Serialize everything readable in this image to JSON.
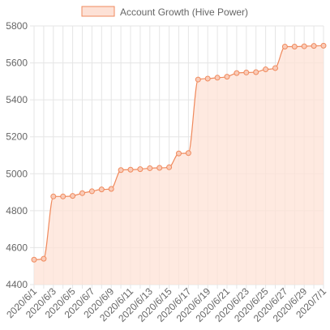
{
  "chart_data": {
    "type": "line",
    "title": "",
    "xlabel": "",
    "ylabel": "",
    "legend_position": "top",
    "grid": true,
    "ylim": [
      4400,
      5800
    ],
    "y_ticks": [
      4400,
      4600,
      4800,
      5000,
      5200,
      5400,
      5600,
      5800
    ],
    "x": [
      "2020/6/1",
      "2020/6/2",
      "2020/6/3",
      "2020/6/4",
      "2020/6/5",
      "2020/6/6",
      "2020/6/7",
      "2020/6/8",
      "2020/6/9",
      "2020/6/10",
      "2020/6/11",
      "2020/6/12",
      "2020/6/13",
      "2020/6/14",
      "2020/6/15",
      "2020/6/16",
      "2020/6/17",
      "2020/6/18",
      "2020/6/19",
      "2020/6/20",
      "2020/6/21",
      "2020/6/22",
      "2020/6/23",
      "2020/6/24",
      "2020/6/25",
      "2020/6/26",
      "2020/6/27",
      "2020/6/28",
      "2020/6/29",
      "2020/6/30",
      "2020/7/1"
    ],
    "x_tick_labels": [
      "2020/6/1",
      "2020/6/3",
      "2020/6/5",
      "2020/6/7",
      "2020/6/9",
      "2020/6/11",
      "2020/6/13",
      "2020/6/15",
      "2020/6/17",
      "2020/6/19",
      "2020/6/21",
      "2020/6/23",
      "2020/6/25",
      "2020/6/27",
      "2020/6/29",
      "2020/7/1"
    ],
    "series": [
      {
        "name": "Account Growth (Hive Power)",
        "fill": true,
        "line_color": "#f08a5d",
        "fill_color": "#fde1d6",
        "point_fill": "#f9cbb8",
        "values": [
          4535,
          4540,
          4877,
          4877,
          4880,
          4895,
          4905,
          4915,
          4918,
          5020,
          5022,
          5025,
          5030,
          5032,
          5035,
          5110,
          5112,
          5510,
          5515,
          5520,
          5525,
          5545,
          5548,
          5550,
          5565,
          5572,
          5688,
          5688,
          5690,
          5692,
          5693
        ]
      }
    ]
  }
}
